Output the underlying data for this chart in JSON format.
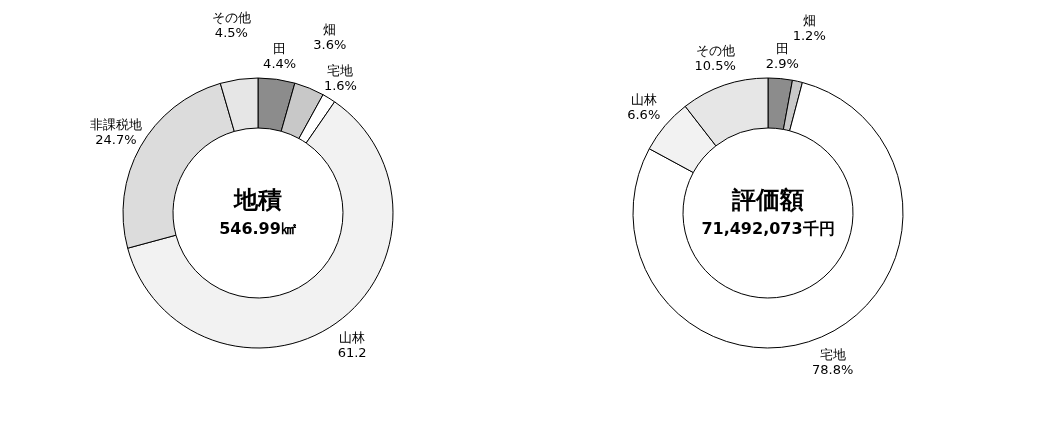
{
  "chart_data": [
    {
      "type": "donut",
      "title": "地積",
      "subtitle": "546.99㎢",
      "categories": [
        "田",
        "畑",
        "宅地",
        "山林",
        "非課税地",
        "その他"
      ],
      "values": [
        4.4,
        3.6,
        1.6,
        61.2,
        24.7,
        4.5
      ],
      "colors": [
        "#8c8c8c",
        "#c8c8c8",
        "#ffffff",
        "#f2f2f2",
        "#dcdcdc",
        "#e6e6e6"
      ],
      "value_labels": [
        "4.4%",
        "3.6%",
        "1.6%",
        "61.2",
        "24.7%",
        "4.5%"
      ]
    },
    {
      "type": "donut",
      "title": "評価額",
      "subtitle": "71,492,073千円",
      "categories": [
        "田",
        "畑",
        "宅地",
        "山林",
        "その他"
      ],
      "values": [
        2.9,
        1.2,
        78.8,
        6.6,
        10.5
      ],
      "colors": [
        "#8c8c8c",
        "#c8c8c8",
        "#ffffff",
        "#f2f2f2",
        "#e6e6e6"
      ],
      "value_labels": [
        "2.9%",
        "1.2%",
        "78.8%",
        "6.6%",
        "10.5%"
      ]
    }
  ]
}
